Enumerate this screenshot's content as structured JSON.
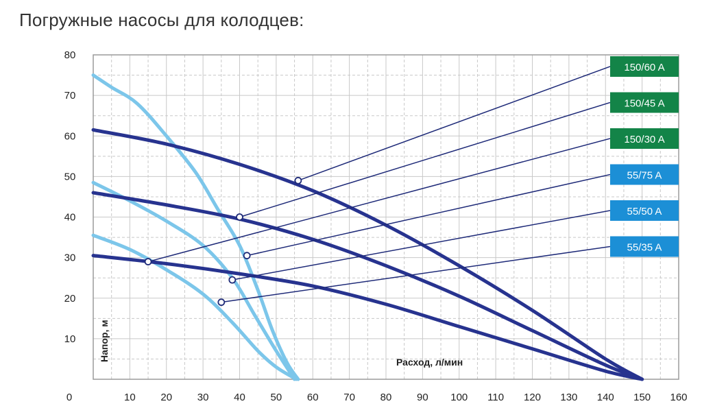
{
  "title": "Погружные насосы для колодцев:",
  "colors": {
    "grid": "#c8c8c8",
    "axis": "#9a9a9a",
    "dark_series": "#27338f",
    "light_series": "#7cc6ea",
    "leader": "#1e2a78",
    "legend_green": "#138448",
    "legend_blue": "#1c8fd6"
  },
  "chart_data": {
    "type": "line",
    "xlabel": "Расход, л/мин",
    "ylabel": "Напор, м",
    "xlim": [
      0,
      160
    ],
    "ylim": [
      0,
      80
    ],
    "x_ticks": [
      0,
      10,
      20,
      30,
      40,
      50,
      60,
      70,
      80,
      90,
      100,
      110,
      120,
      130,
      140,
      150,
      160
    ],
    "y_ticks": [
      10,
      20,
      30,
      40,
      50,
      60,
      70,
      80
    ],
    "grid": true,
    "legend_position": "right",
    "series": [
      {
        "name": "150/60 A",
        "family": "dark",
        "legend_color": "green",
        "points": [
          [
            0,
            61.5
          ],
          [
            20,
            58
          ],
          [
            40,
            53
          ],
          [
            60,
            46.5
          ],
          [
            80,
            38
          ],
          [
            100,
            28
          ],
          [
            120,
            17
          ],
          [
            140,
            5
          ],
          [
            150,
            0
          ]
        ],
        "marker": [
          56,
          49
        ]
      },
      {
        "name": "150/45 A",
        "family": "dark",
        "legend_color": "green",
        "points": [
          [
            0,
            46
          ],
          [
            20,
            43
          ],
          [
            40,
            39.5
          ],
          [
            60,
            34.5
          ],
          [
            80,
            28
          ],
          [
            100,
            20.5
          ],
          [
            120,
            12
          ],
          [
            140,
            3.5
          ],
          [
            150,
            0
          ]
        ],
        "marker": [
          40,
          40
        ]
      },
      {
        "name": "150/30 A",
        "family": "dark",
        "legend_color": "green",
        "points": [
          [
            0,
            30.5
          ],
          [
            20,
            28.5
          ],
          [
            40,
            26
          ],
          [
            60,
            23
          ],
          [
            80,
            18.5
          ],
          [
            100,
            13
          ],
          [
            120,
            7.5
          ],
          [
            140,
            2
          ],
          [
            150,
            0
          ]
        ],
        "marker": [
          15,
          29
        ]
      },
      {
        "name": "55/75 A",
        "family": "light",
        "legend_color": "blue",
        "points": [
          [
            0,
            75
          ],
          [
            5,
            72
          ],
          [
            12,
            68
          ],
          [
            20,
            60
          ],
          [
            28,
            51
          ],
          [
            34,
            42
          ],
          [
            40,
            33
          ],
          [
            45,
            22
          ],
          [
            49,
            12
          ],
          [
            53,
            4
          ],
          [
            56,
            0
          ]
        ],
        "marker": [
          42,
          30.5
        ]
      },
      {
        "name": "55/50 A",
        "family": "light",
        "legend_color": "blue",
        "points": [
          [
            0,
            48.5
          ],
          [
            10,
            44
          ],
          [
            20,
            39
          ],
          [
            30,
            33
          ],
          [
            38,
            25
          ],
          [
            44,
            16
          ],
          [
            50,
            7
          ],
          [
            55,
            0
          ]
        ],
        "marker": [
          38,
          24.5
        ]
      },
      {
        "name": "55/35 A",
        "family": "light",
        "legend_color": "blue",
        "points": [
          [
            0,
            35.5
          ],
          [
            10,
            32
          ],
          [
            20,
            27
          ],
          [
            30,
            21
          ],
          [
            38,
            14
          ],
          [
            45,
            7
          ],
          [
            50,
            3
          ],
          [
            55.5,
            0
          ]
        ],
        "marker": [
          35,
          19
        ]
      }
    ]
  }
}
